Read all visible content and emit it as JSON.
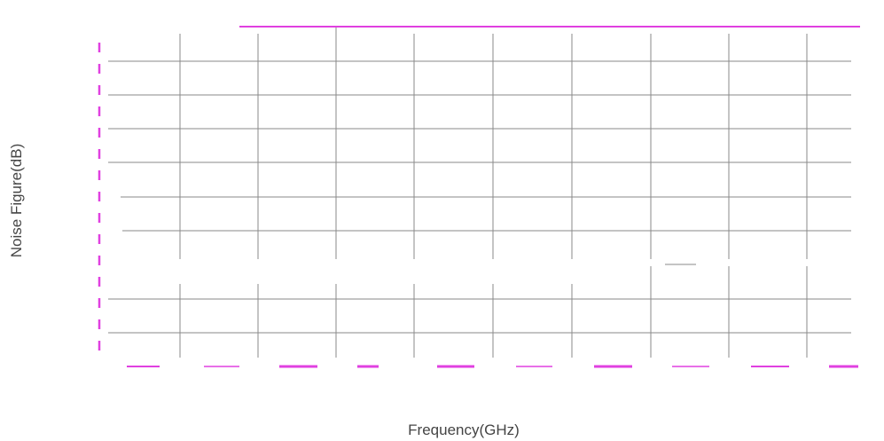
{
  "chart_data": {
    "type": "line",
    "title": "",
    "xlabel": "Frequency(GHz)",
    "ylabel": "Noise Figure(dB)",
    "grid": true,
    "x_gridlines": 10,
    "y_gridlines": 10,
    "tick_labels_visible": false,
    "colors": {
      "grid": "#8a8a8a",
      "series": "#e040e0",
      "axis_label": "#444444"
    }
  }
}
